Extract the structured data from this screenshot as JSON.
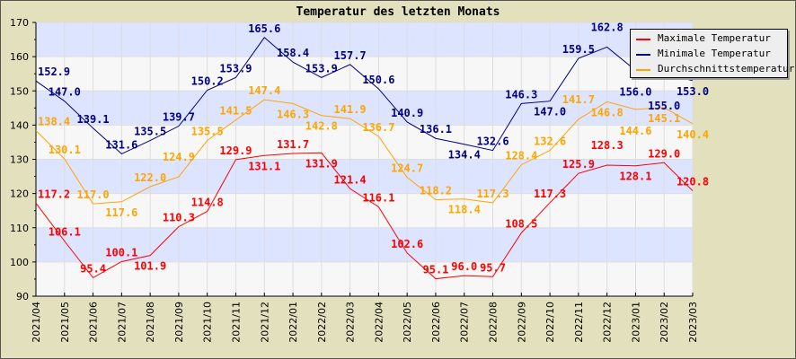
{
  "chart_data": {
    "type": "line",
    "title": "Temperatur des letzten Monats",
    "xlabel": "",
    "ylabel": "",
    "ylim": [
      90,
      170
    ],
    "yticks": [
      90,
      100,
      110,
      120,
      130,
      140,
      150,
      160,
      170
    ],
    "grid": true,
    "legend_position": "top-right",
    "categories": [
      "2021/04",
      "2021/05",
      "2021/06",
      "2021/07",
      "2021/08",
      "2021/09",
      "2021/10",
      "2021/11",
      "2021/12",
      "2022/01",
      "2022/02",
      "2022/03",
      "2022/04",
      "2022/05",
      "2022/06",
      "2022/07",
      "2022/08",
      "2022/09",
      "2022/10",
      "2022/11",
      "2022/12",
      "2023/01",
      "2023/02",
      "2023/03"
    ],
    "series": [
      {
        "name": "Maximale Temperatur",
        "color": "#ff0000",
        "values": [
          117.2,
          106.1,
          95.4,
          100.1,
          101.9,
          110.3,
          114.8,
          129.9,
          131.1,
          131.7,
          131.9,
          121.4,
          116.1,
          102.6,
          95.1,
          96.0,
          95.7,
          108.5,
          117.3,
          125.9,
          128.3,
          128.1,
          129.0,
          120.8
        ]
      },
      {
        "name": "Minimale Temperatur",
        "color": "#000080",
        "values": [
          152.9,
          147.0,
          139.1,
          131.6,
          135.5,
          139.7,
          150.2,
          153.9,
          165.6,
          158.4,
          153.9,
          157.7,
          150.6,
          140.9,
          136.1,
          134.4,
          132.6,
          146.3,
          147.0,
          159.5,
          162.8,
          156.0,
          155.0,
          153.0
        ]
      },
      {
        "name": "Durchschnittstemperatur",
        "color": "#ffa500",
        "values": [
          138.4,
          130.1,
          117.0,
          117.6,
          122.0,
          124.9,
          135.5,
          141.5,
          147.4,
          146.3,
          142.8,
          141.9,
          136.7,
          124.7,
          118.2,
          118.4,
          117.3,
          128.4,
          132.6,
          141.7,
          146.8,
          144.6,
          145.1,
          140.4
        ]
      }
    ],
    "band_colors": [
      "#f7f7f7",
      "#dde4ff"
    ]
  }
}
